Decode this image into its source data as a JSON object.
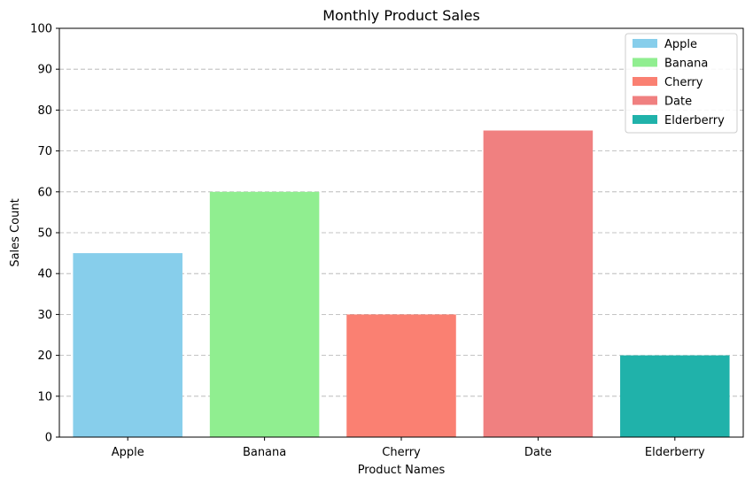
{
  "chart_data": {
    "type": "bar",
    "title": "Monthly Product Sales",
    "xlabel": "Product Names",
    "ylabel": "Sales Count",
    "categories": [
      "Apple",
      "Banana",
      "Cherry",
      "Date",
      "Elderberry"
    ],
    "values": [
      45,
      60,
      30,
      75,
      20
    ],
    "colors": [
      "#87ceeb",
      "#90ee90",
      "#fa8072",
      "#f08080",
      "#20b2aa"
    ],
    "ylim": [
      0,
      100
    ],
    "yticks": [
      0,
      10,
      20,
      30,
      40,
      50,
      60,
      70,
      80,
      90,
      100
    ],
    "grid": "y-dashed",
    "legend_position": "top-right",
    "legend": [
      "Apple",
      "Banana",
      "Cherry",
      "Date",
      "Elderberry"
    ]
  }
}
